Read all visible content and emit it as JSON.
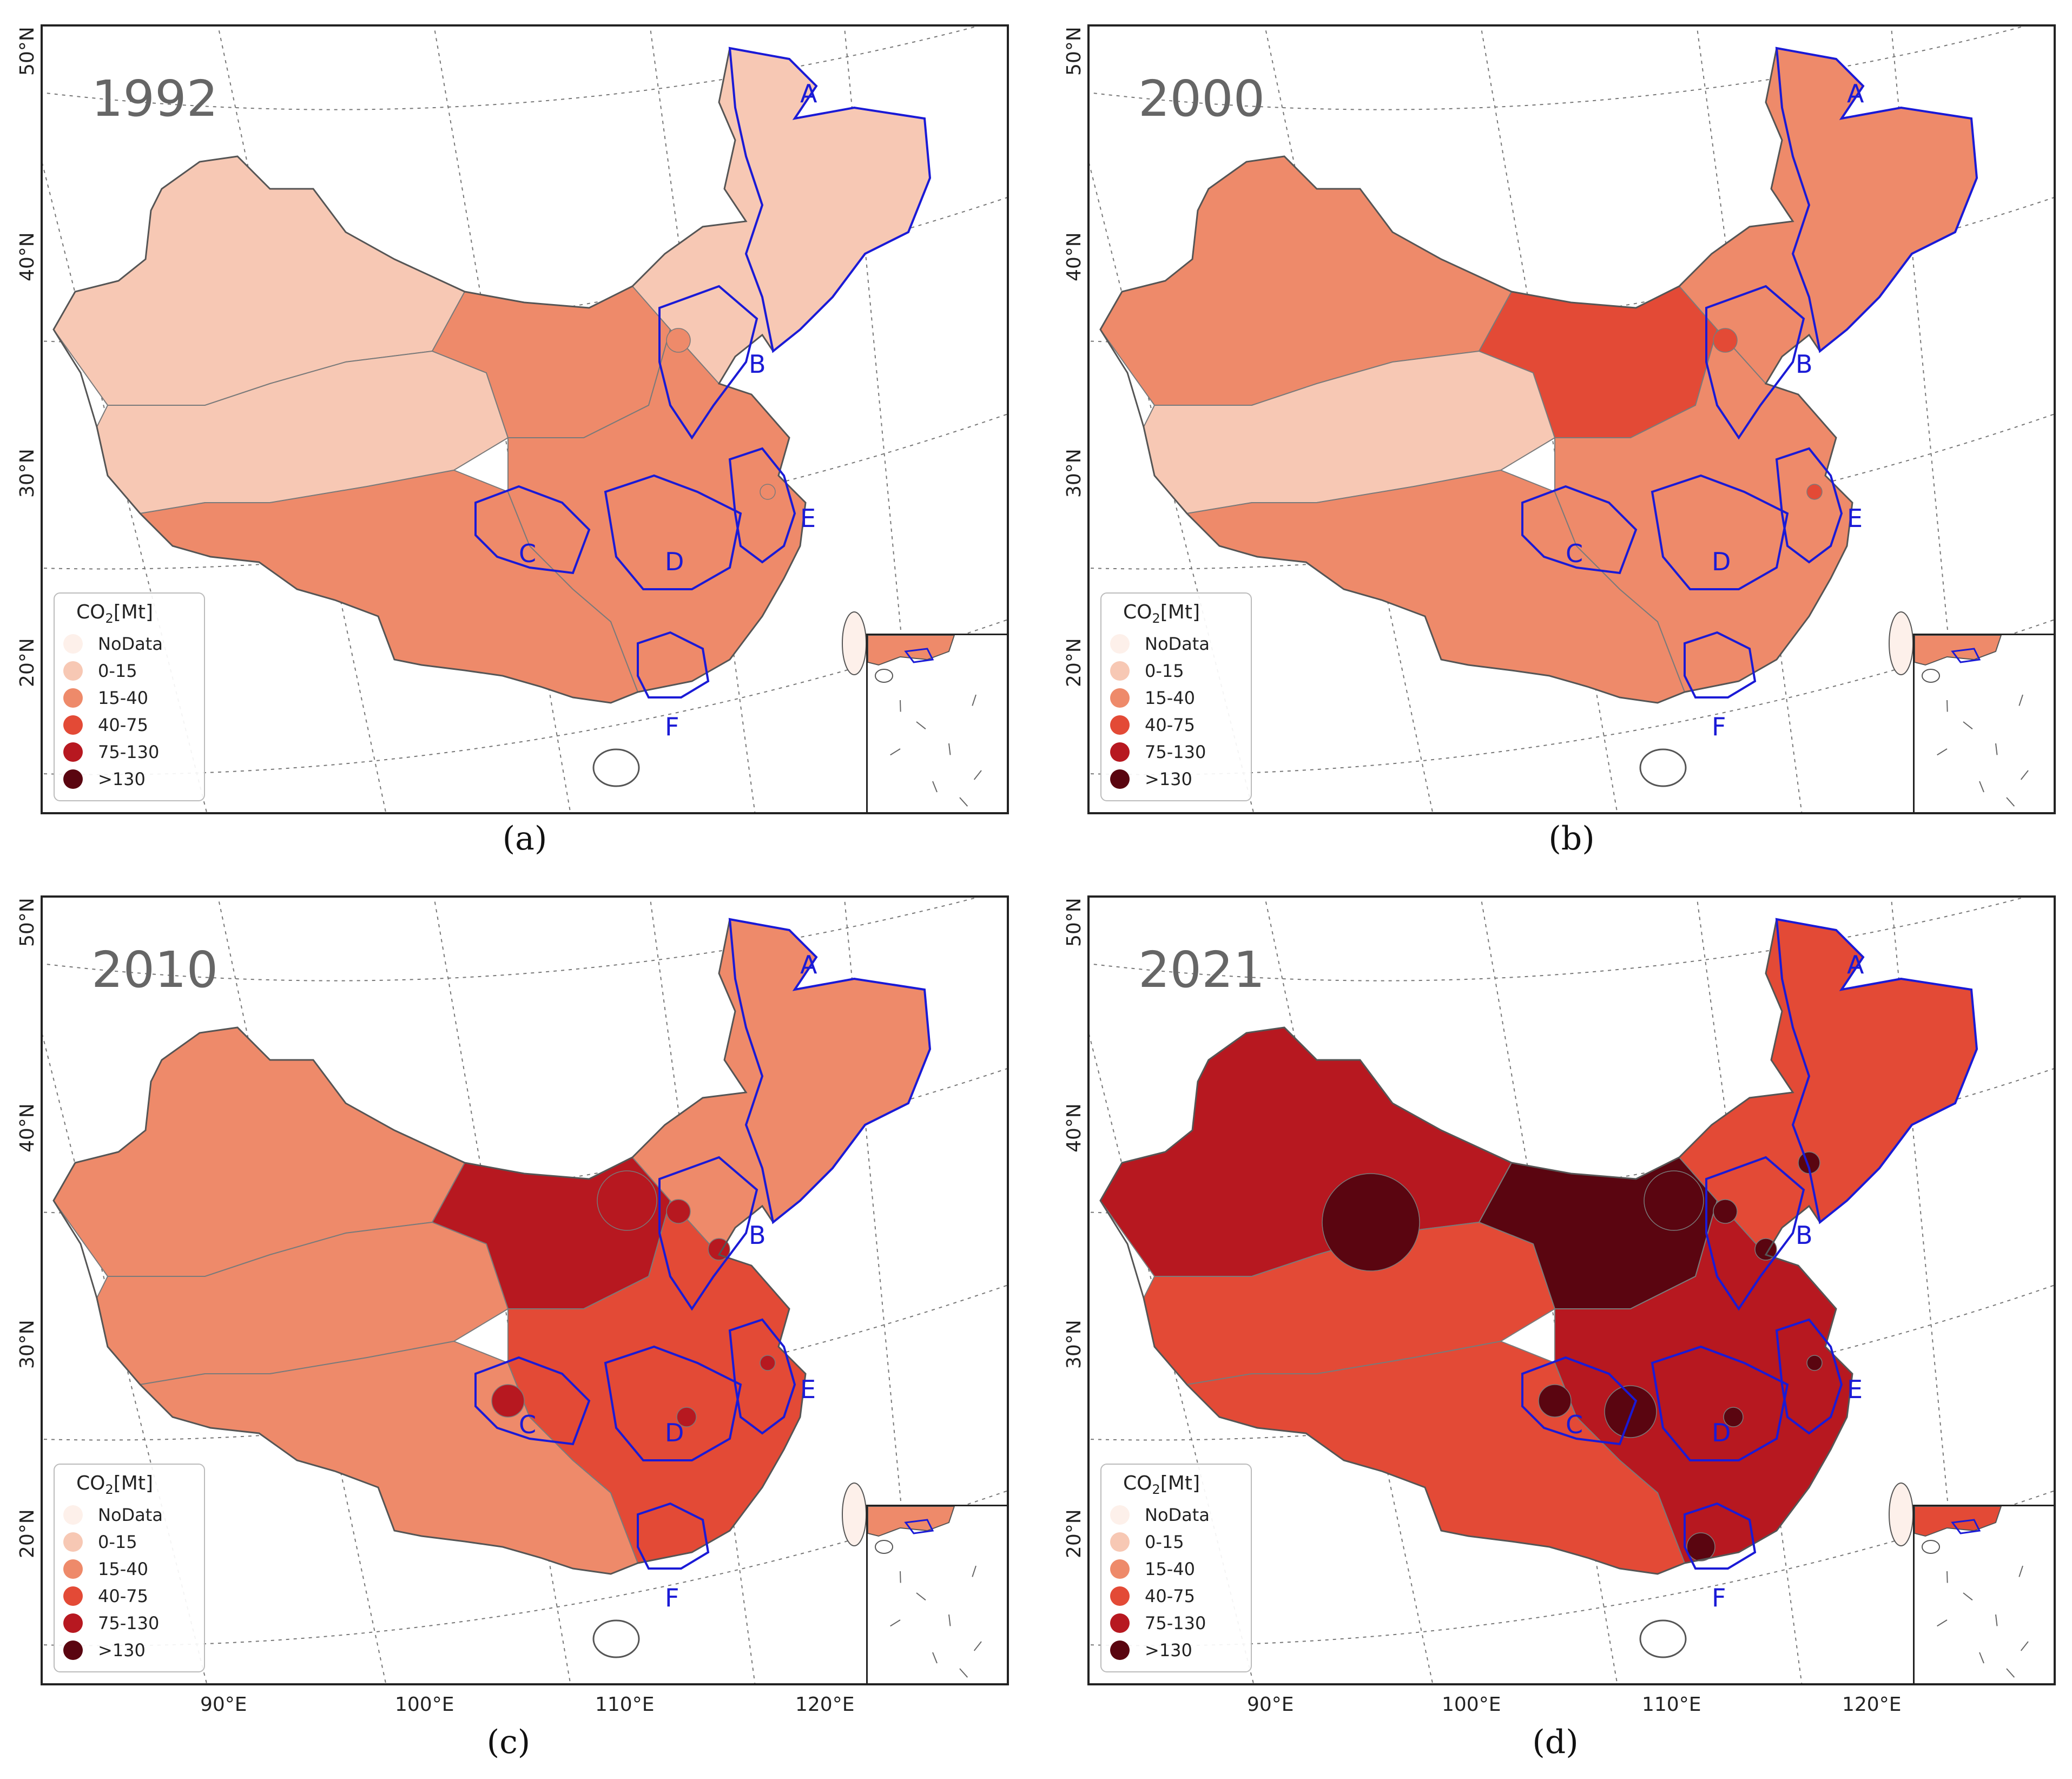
{
  "legend": {
    "title_main": "CO",
    "title_sub": "2",
    "title_unit": "[Mt]",
    "classes": [
      {
        "label": "NoData",
        "color": "#fdf0ea"
      },
      {
        "label": "0-15",
        "color": "#f7c8b4"
      },
      {
        "label": "15-40",
        "color": "#ee8a6a"
      },
      {
        "label": "40-75",
        "color": "#e34a36"
      },
      {
        "label": "75-130",
        "color": "#b71820"
      },
      {
        "label": ">130",
        "color": "#5a0510"
      }
    ]
  },
  "region_labels": [
    "A",
    "B",
    "C",
    "D",
    "E",
    "F"
  ],
  "lat_labels": [
    "50°N",
    "40°N",
    "30°N",
    "20°N"
  ],
  "lon_labels": [
    "90°E",
    "100°E",
    "110°E",
    "120°E"
  ],
  "colors": {
    "region_border": "#1a1ad6",
    "graticule": "#777777",
    "boundary": "#7a7a7a"
  },
  "panels": [
    {
      "year": "1992",
      "caption": "(a)",
      "base": 1,
      "west": 1,
      "south": 2,
      "east": 2,
      "north": 1,
      "core": 2
    },
    {
      "year": "2000",
      "caption": "(b)",
      "base": 1,
      "west": 2,
      "south": 2,
      "east": 2,
      "north": 2,
      "core": 3
    },
    {
      "year": "2010",
      "caption": "(c)",
      "base": 2,
      "west": 2,
      "south": 2,
      "east": 3,
      "north": 2,
      "core": 4
    },
    {
      "year": "2021",
      "caption": "(d)",
      "base": 3,
      "west": 4,
      "south": 3,
      "east": 4,
      "north": 3,
      "core": 5
    }
  ]
}
